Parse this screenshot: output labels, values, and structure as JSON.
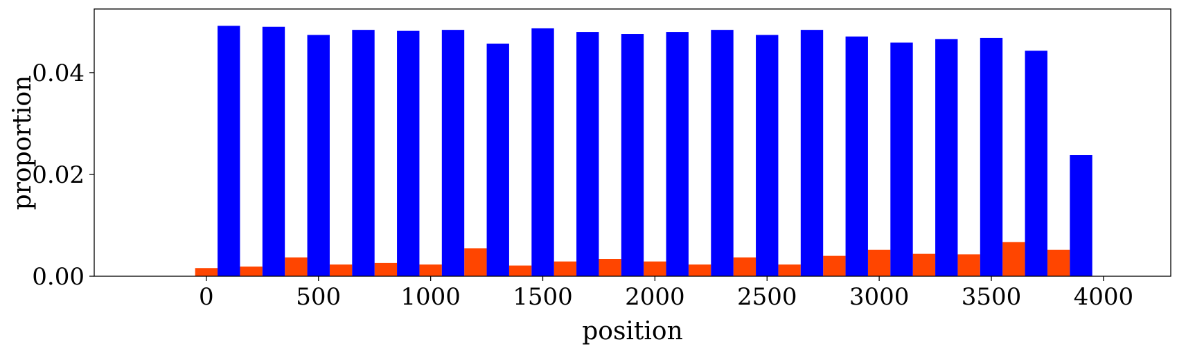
{
  "chart_data": {
    "type": "bar",
    "xlabel": "position",
    "ylabel": "proportion",
    "xlim": [
      -500,
      4300
    ],
    "ylim": [
      0,
      0.0525
    ],
    "xticks": [
      0,
      500,
      1000,
      1500,
      2000,
      2500,
      3000,
      3500,
      4000
    ],
    "xtick_labels": [
      "0",
      "500",
      "1000",
      "1500",
      "2000",
      "2500",
      "3000",
      "3500",
      "4000"
    ],
    "yticks": [
      0,
      0.02,
      0.04
    ],
    "ytick_labels": [
      "0.00",
      "0.02",
      "0.04"
    ],
    "bin_width": 200,
    "bins": [
      -50,
      150,
      350,
      550,
      750,
      950,
      1150,
      1350,
      1550,
      1750,
      1950,
      2150,
      2350,
      2550,
      2750,
      2950,
      3150,
      3350,
      3550,
      3750
    ],
    "grid": false,
    "legend": "none",
    "series": [
      {
        "color": "#ff4500",
        "values": [
          0.0016,
          0.0019,
          0.0037,
          0.0023,
          0.0026,
          0.0023,
          0.0055,
          0.0021,
          0.0029,
          0.0034,
          0.0029,
          0.0023,
          0.0037,
          0.0023,
          0.004,
          0.0052,
          0.0044,
          0.0043,
          0.0067,
          0.0052
        ]
      },
      {
        "color": "#0000ff",
        "values": [
          0.0492,
          0.049,
          0.0474,
          0.0484,
          0.0482,
          0.0484,
          0.0457,
          0.0487,
          0.048,
          0.0476,
          0.048,
          0.0484,
          0.0474,
          0.0484,
          0.0471,
          0.0459,
          0.0466,
          0.0468,
          0.0443,
          0.0238
        ]
      }
    ]
  }
}
